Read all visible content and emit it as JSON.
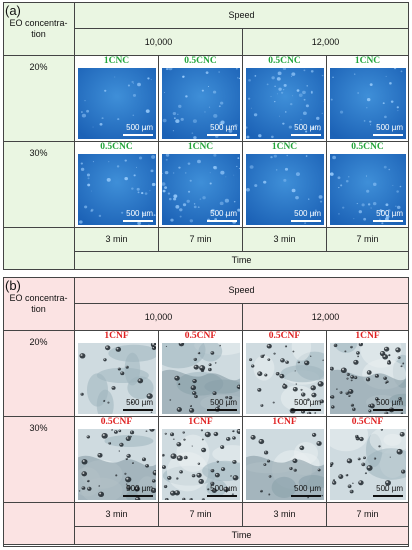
{
  "panel_a": {
    "letter": "(a)",
    "row_header": "EO concentra-tion",
    "speed_header": "Speed",
    "speeds": [
      "10,000",
      "12,000"
    ],
    "rows": [
      {
        "label": "20%",
        "images": [
          {
            "label": "1CNC",
            "scale": "500 µm"
          },
          {
            "label": "0.5CNC",
            "scale": "500 µm"
          },
          {
            "label": "0.5CNC",
            "scale": "500 µm"
          },
          {
            "label": "1CNC",
            "scale": "500 µm"
          }
        ]
      },
      {
        "label": "30%",
        "images": [
          {
            "label": "0.5CNC",
            "scale": "500 µm"
          },
          {
            "label": "1CNC",
            "scale": "500 µm"
          },
          {
            "label": "1CNC",
            "scale": "500 µm"
          },
          {
            "label": "0.5CNC",
            "scale": "500 µm"
          }
        ]
      }
    ],
    "times": [
      "3 min",
      "7 min",
      "3 min",
      "7 min"
    ],
    "time_header": "Time",
    "label_color": "#22a43a"
  },
  "panel_b": {
    "letter": "(b)",
    "row_header": "EO concentra-tion",
    "speed_header": "Speed",
    "speeds": [
      "10,000",
      "12,000"
    ],
    "rows": [
      {
        "label": "20%",
        "images": [
          {
            "label": "1CNF",
            "scale": "500 µm"
          },
          {
            "label": "0.5CNF",
            "scale": "500 µm"
          },
          {
            "label": "0.5CNF",
            "scale": "500 µm"
          },
          {
            "label": "1CNF",
            "scale": "500 µm"
          }
        ]
      },
      {
        "label": "30%",
        "images": [
          {
            "label": "0.5CNF",
            "scale": "500 µm"
          },
          {
            "label": "1CNF",
            "scale": "500 µm"
          },
          {
            "label": "1CNF",
            "scale": "500 µm"
          },
          {
            "label": "0.5CNF",
            "scale": "500 µm"
          }
        ]
      }
    ],
    "times": [
      "3 min",
      "7 min",
      "3 min",
      "7 min"
    ],
    "time_header": "Time",
    "label_color": "#e02020"
  }
}
